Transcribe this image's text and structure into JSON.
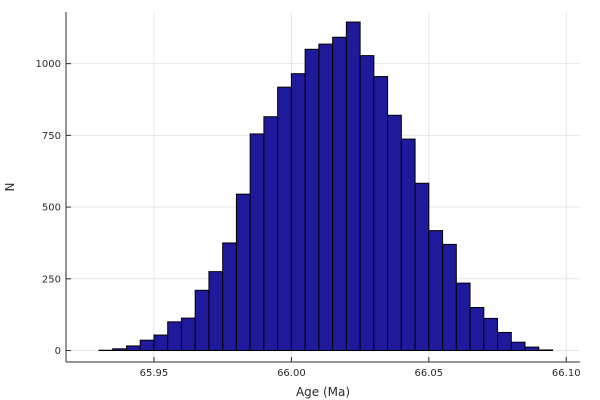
{
  "chart_data": {
    "type": "bar",
    "title": "",
    "xlabel": "Age (Ma)",
    "ylabel": "N",
    "xlim": [
      65.918,
      66.105
    ],
    "ylim": [
      -40,
      1180
    ],
    "xticks": [
      65.95,
      66.0,
      66.05,
      66.1
    ],
    "xtick_labels": [
      "65.95",
      "66.00",
      "66.05",
      "66.10"
    ],
    "yticks": [
      0,
      250,
      500,
      750,
      1000
    ],
    "ytick_labels": [
      "0",
      "250",
      "500",
      "750",
      "1000"
    ],
    "grid": true,
    "bar_color": "#1f1a9c",
    "bin_edges": [
      65.93,
      65.935,
      65.94,
      65.945,
      65.95,
      65.955,
      65.96,
      65.965,
      65.97,
      65.975,
      65.98,
      65.985,
      65.99,
      65.995,
      66.0,
      66.005,
      66.01,
      66.015,
      66.02,
      66.025,
      66.03,
      66.035,
      66.04,
      66.045,
      66.05,
      66.055,
      66.06,
      66.065,
      66.07,
      66.075,
      66.08,
      66.085,
      66.09,
      66.095
    ],
    "values": [
      1,
      6,
      16,
      36,
      54,
      100,
      113,
      210,
      275,
      375,
      545,
      755,
      815,
      918,
      965,
      1050,
      1068,
      1092,
      1145,
      1028,
      955,
      820,
      737,
      583,
      418,
      370,
      235,
      150,
      112,
      63,
      29,
      12,
      2
    ]
  }
}
